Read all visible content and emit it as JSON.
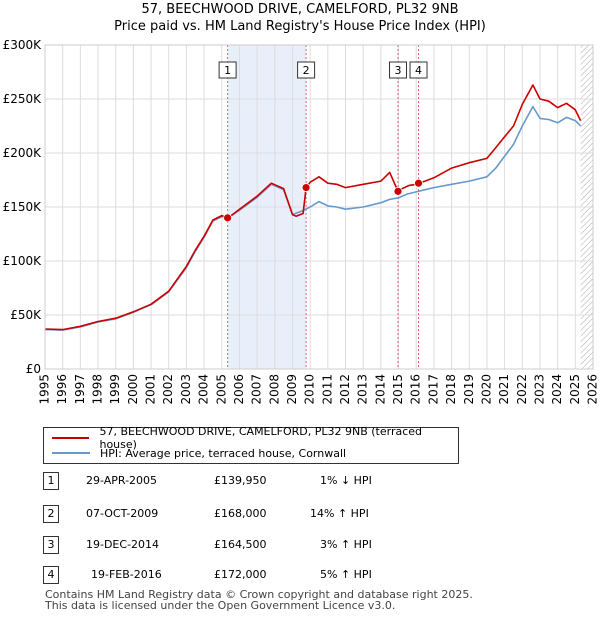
{
  "title_line1": "57, BEECHWOOD DRIVE, CAMELFORD, PL32 9NB",
  "title_line2": "Price paid vs. HM Land Registry's House Price Index (HPI)",
  "colors": {
    "property": "#cc0000",
    "hpi": "#6699cc",
    "shade": "#e9eefb",
    "grid": "#dddddd",
    "marker_line": "#e06666"
  },
  "chart_data": {
    "type": "line",
    "xlim": [
      1995,
      2026
    ],
    "ylim": [
      0,
      300000
    ],
    "x_ticks": [
      1995,
      1996,
      1997,
      1998,
      1999,
      2000,
      2001,
      2002,
      2003,
      2004,
      2005,
      2006,
      2007,
      2008,
      2009,
      2010,
      2011,
      2012,
      2013,
      2014,
      2015,
      2016,
      2017,
      2018,
      2019,
      2020,
      2021,
      2022,
      2023,
      2024,
      2025,
      2026
    ],
    "y_ticks": [
      0,
      50000,
      100000,
      150000,
      200000,
      250000,
      300000
    ],
    "y_tick_labels": [
      "£0",
      "£50K",
      "£100K",
      "£150K",
      "£200K",
      "£250K",
      "£300K"
    ],
    "series": [
      {
        "name": "57, BEECHWOOD DRIVE, CAMELFORD, PL32 9NB (terraced house)",
        "color": "#cc0000",
        "x": [
          1995,
          1996,
          1997,
          1998,
          1999,
          2000,
          2001,
          2002,
          2003,
          2003.5,
          2004,
          2004.5,
          2005,
          2005.33,
          2005.6,
          2006,
          2007,
          2007.8,
          2008.5,
          2009,
          2009.2,
          2009.6,
          2009.77,
          2010,
          2010.5,
          2011,
          2011.5,
          2012,
          2013,
          2014,
          2014.5,
          2014.97,
          2015.2,
          2015.6,
          2016,
          2016.13,
          2016.5,
          2017,
          2018,
          2019,
          2020,
          2020.5,
          2021,
          2021.5,
          2022,
          2022.6,
          2023,
          2023.5,
          2024,
          2024.5,
          2025,
          2025.3
        ],
        "y": [
          37000,
          36500,
          39500,
          44000,
          47000,
          53000,
          60000,
          72000,
          95000,
          110000,
          123000,
          138000,
          142000,
          139950,
          143000,
          148000,
          160000,
          172000,
          167000,
          143000,
          141500,
          144000,
          168000,
          173000,
          178000,
          172000,
          171000,
          168000,
          171000,
          174000,
          182000,
          164500,
          167000,
          170000,
          171000,
          172000,
          174000,
          177000,
          186000,
          191000,
          195000,
          205000,
          215000,
          225000,
          245000,
          263000,
          250000,
          248000,
          242000,
          246000,
          240000,
          230000
        ]
      },
      {
        "name": "HPI: Average price, terraced house, Cornwall",
        "color": "#6699cc",
        "x": [
          1995,
          1996,
          1997,
          1998,
          1999,
          2000,
          2001,
          2002,
          2003,
          2003.5,
          2004,
          2004.5,
          2005,
          2005.33,
          2005.6,
          2006,
          2007,
          2007.8,
          2008.5,
          2009,
          2009.5,
          2010,
          2010.5,
          2011,
          2011.5,
          2012,
          2013,
          2014,
          2014.5,
          2015,
          2015.5,
          2016,
          2016.5,
          2017,
          2018,
          2019,
          2020,
          2020.5,
          2021,
          2021.5,
          2022,
          2022.6,
          2023,
          2023.5,
          2024,
          2024.5,
          2025,
          2025.3
        ],
        "y": [
          36500,
          36000,
          39000,
          43500,
          46500,
          52500,
          59500,
          71500,
          94000,
          109000,
          122000,
          137000,
          141000,
          141400,
          142500,
          147000,
          159000,
          171000,
          166000,
          143000,
          146000,
          150000,
          155000,
          151000,
          150000,
          148000,
          150000,
          154000,
          157000,
          158500,
          162000,
          164000,
          166000,
          168000,
          171000,
          174000,
          178000,
          186000,
          197000,
          208000,
          225000,
          243000,
          232000,
          231000,
          228000,
          233000,
          230000,
          225000
        ]
      }
    ],
    "sales": [
      {
        "label": "1",
        "x": 2005.33,
        "y": 139950
      },
      {
        "label": "2",
        "x": 2009.77,
        "y": 168000
      },
      {
        "label": "3",
        "x": 2014.97,
        "y": 164500
      },
      {
        "label": "4",
        "x": 2016.13,
        "y": 172000
      }
    ],
    "shaded_range": [
      2005.33,
      2009.77
    ],
    "hatch_from": 2025.3
  },
  "legend": [
    {
      "label": "57, BEECHWOOD DRIVE, CAMELFORD, PL32 9NB (terraced house)",
      "color": "#cc0000"
    },
    {
      "label": "HPI: Average price, terraced house, Cornwall",
      "color": "#6699cc"
    }
  ],
  "table": [
    {
      "num": "1",
      "date": "29-APR-2005",
      "price": "£139,950",
      "hpi": "1% ↓ HPI"
    },
    {
      "num": "2",
      "date": "07-OCT-2009",
      "price": "£168,000",
      "hpi": "14% ↑ HPI"
    },
    {
      "num": "3",
      "date": "19-DEC-2014",
      "price": "£164,500",
      "hpi": "3% ↑ HPI"
    },
    {
      "num": "4",
      "date": "19-FEB-2016",
      "price": "£172,000",
      "hpi": "5% ↑ HPI"
    }
  ],
  "footer_line1": "Contains HM Land Registry data © Crown copyright and database right 2025.",
  "footer_line2": "This data is licensed under the Open Government Licence v3.0."
}
